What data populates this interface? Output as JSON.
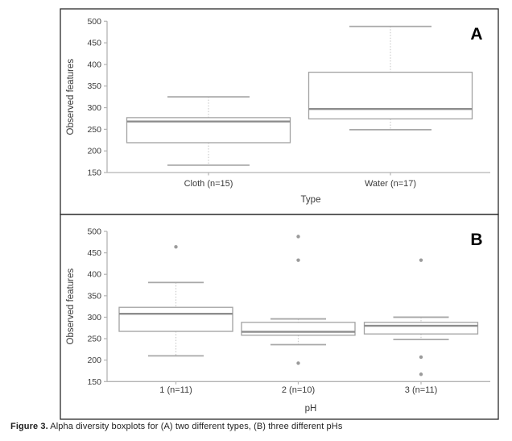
{
  "figure": {
    "caption_label": "Figure 3.",
    "caption_text": " Alpha diversity boxplots for (A) two different types, (B) three different pHs"
  },
  "colors": {
    "frame": "#2b2b2b",
    "axis": "#b3b3b3",
    "tick_text": "#3a3a3a",
    "box_stroke": "#a2a2a2",
    "box_fill": "#ffffff",
    "median": "#8d8d8d",
    "whisker_cap": "#a8a8a8",
    "whisker_dotted": "#cccccc",
    "outlier": "#9b9b9b",
    "panel_letter": "#000000"
  },
  "chart_data": [
    {
      "type": "boxplot",
      "panel_label": "A",
      "title": "",
      "xlabel": "Type",
      "ylabel": "Observed features",
      "ylim": [
        150,
        500
      ],
      "yticks": [
        150,
        200,
        250,
        300,
        350,
        400,
        450,
        500
      ],
      "grid": false,
      "groups": [
        {
          "label": "Cloth (n=15)",
          "whisker_low": 167,
          "q1": 219,
          "median": 268,
          "q3": 277,
          "whisker_high": 325,
          "outliers": []
        },
        {
          "label": "Water (n=17)",
          "whisker_low": 249,
          "q1": 274,
          "median": 297,
          "q3": 382,
          "whisker_high": 488,
          "outliers": []
        }
      ]
    },
    {
      "type": "boxplot",
      "panel_label": "B",
      "title": "",
      "xlabel": "pH",
      "ylabel": "Observed features",
      "ylim": [
        150,
        500
      ],
      "yticks": [
        150,
        200,
        250,
        300,
        350,
        400,
        450,
        500
      ],
      "grid": false,
      "groups": [
        {
          "label": "1 (n=11)",
          "whisker_low": 210,
          "q1": 267,
          "median": 308,
          "q3": 323,
          "whisker_high": 381,
          "outliers": [
            464
          ]
        },
        {
          "label": "2 (n=10)",
          "whisker_low": 236,
          "q1": 258,
          "median": 266,
          "q3": 288,
          "whisker_high": 296,
          "outliers": [
            488,
            433,
            193
          ]
        },
        {
          "label": "3 (n=11)",
          "whisker_low": 248,
          "q1": 261,
          "median": 280,
          "q3": 288,
          "whisker_high": 300,
          "outliers": [
            433,
            207,
            167
          ]
        }
      ]
    }
  ]
}
